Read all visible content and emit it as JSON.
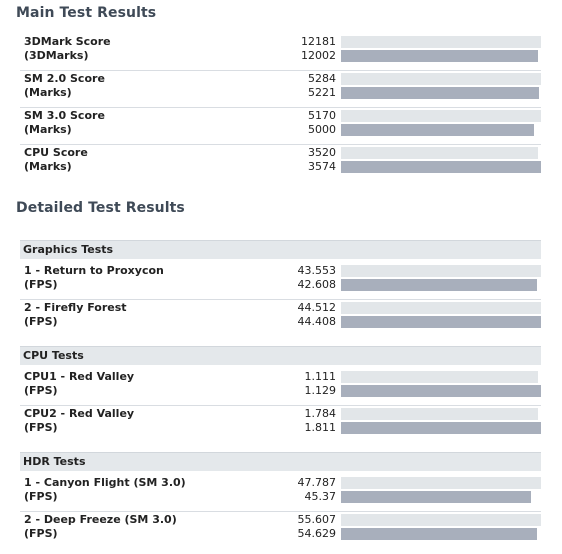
{
  "main": {
    "title": "Main Test Results",
    "max": 3600,
    "rows": [
      {
        "label": "3DMark Score",
        "unit": "(3DMarks)",
        "ref": "12181",
        "cur": "12002",
        "ref_frac": 1.0,
        "cur_frac": 0.985
      },
      {
        "label": "SM 2.0 Score",
        "unit": "(Marks)",
        "ref": "5284",
        "cur": "5221",
        "ref_frac": 1.0,
        "cur_frac": 0.988
      },
      {
        "label": "SM 3.0 Score",
        "unit": "(Marks)",
        "ref": "5170",
        "cur": "5000",
        "ref_frac": 1.0,
        "cur_frac": 0.967
      },
      {
        "label": "CPU Score",
        "unit": "(Marks)",
        "ref": "3520",
        "cur": "3574",
        "ref_frac": 0.985,
        "cur_frac": 1.0
      }
    ]
  },
  "detailed": {
    "title": "Detailed Test Results",
    "groups": [
      {
        "name": "Graphics Tests",
        "rows": [
          {
            "label": "1 - Return to Proxycon",
            "unit": "(FPS)",
            "ref": "43.553",
            "cur": "42.608",
            "ref_frac": 1.0,
            "cur_frac": 0.978
          },
          {
            "label": "2 - Firefly Forest",
            "unit": "(FPS)",
            "ref": "44.512",
            "cur": "44.408",
            "ref_frac": 1.0,
            "cur_frac": 0.998
          }
        ]
      },
      {
        "name": "CPU Tests",
        "rows": [
          {
            "label": "CPU1 - Red Valley",
            "unit": "(FPS)",
            "ref": "1.111",
            "cur": "1.129",
            "ref_frac": 0.984,
            "cur_frac": 1.0
          },
          {
            "label": "CPU2 - Red Valley",
            "unit": "(FPS)",
            "ref": "1.784",
            "cur": "1.811",
            "ref_frac": 0.985,
            "cur_frac": 1.0
          }
        ]
      },
      {
        "name": "HDR Tests",
        "rows": [
          {
            "label": "1 - Canyon Flight (SM 3.0)",
            "unit": "(FPS)",
            "ref": "47.787",
            "cur": "45.37",
            "ref_frac": 1.0,
            "cur_frac": 0.949
          },
          {
            "label": "2 - Deep Freeze (SM 3.0)",
            "unit": "(FPS)",
            "ref": "55.607",
            "cur": "54.629",
            "ref_frac": 1.0,
            "cur_frac": 0.982
          }
        ]
      }
    ]
  },
  "colors": {
    "ref_bar": "#e2e6e9",
    "cur_bar": "#a8afbc",
    "group_header_bg": "#e4e8eb",
    "section_title": "#3f4a57"
  }
}
